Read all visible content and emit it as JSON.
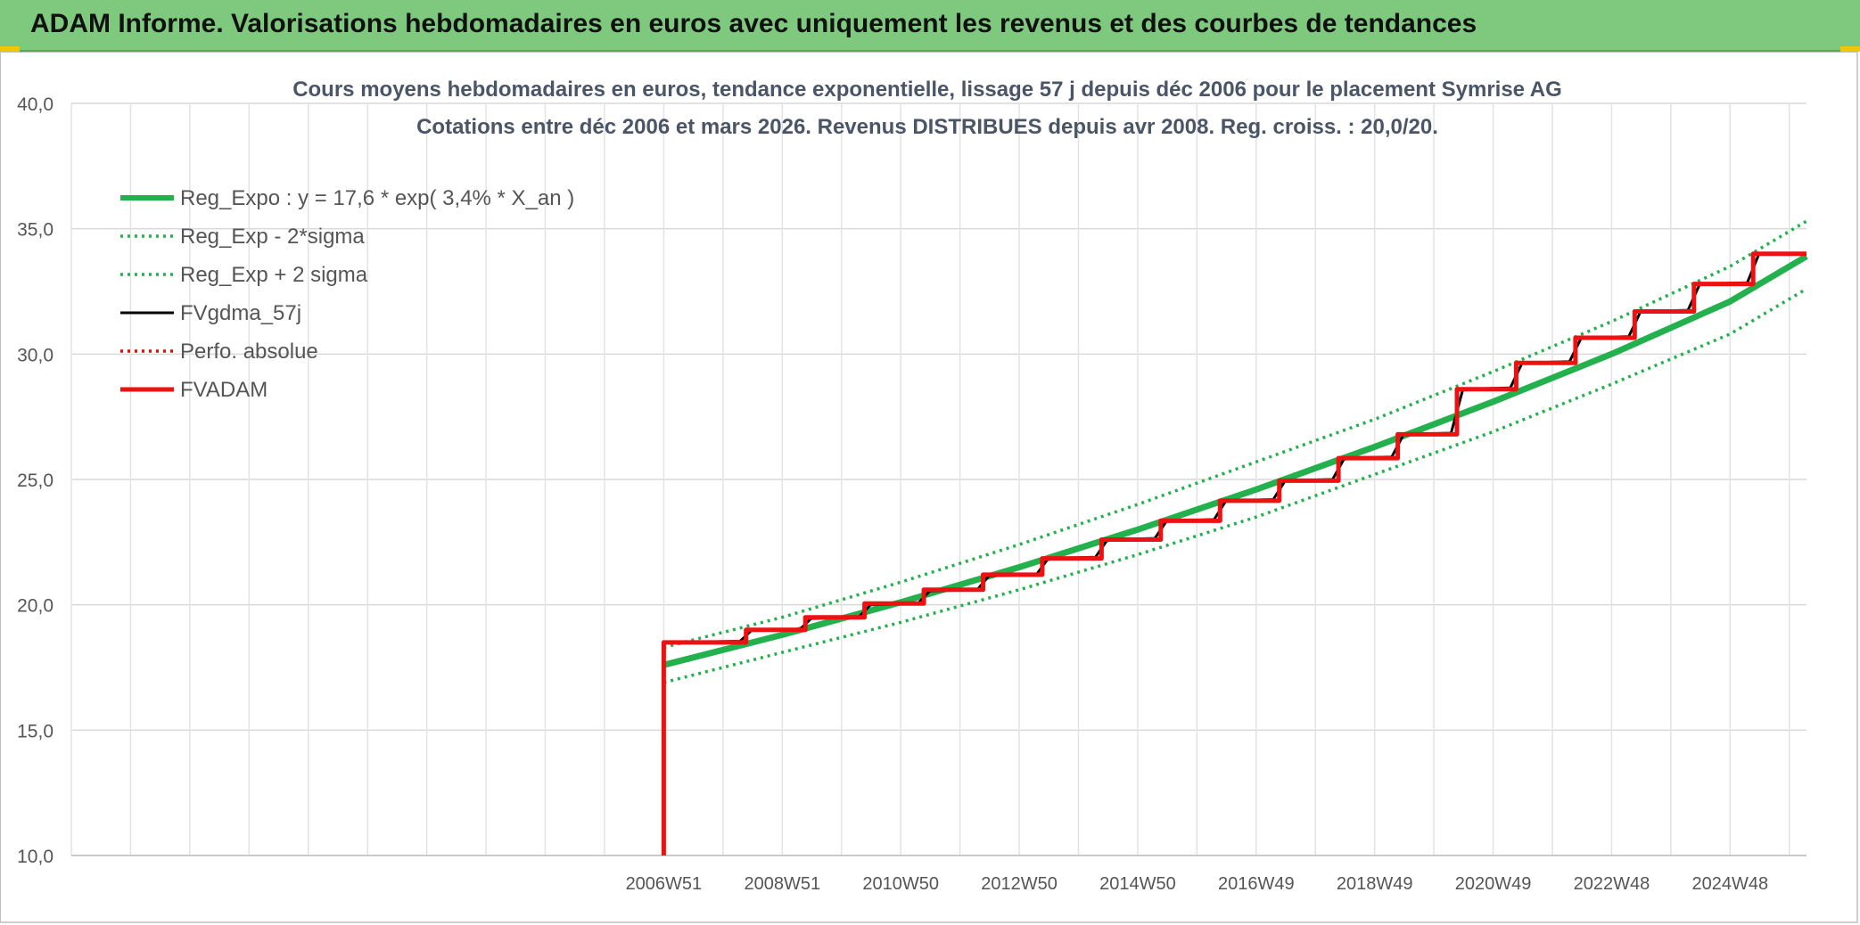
{
  "header": {
    "title": "ADAM Informe. Valorisations hebdomadaires en euros avec uniquement les revenus et des courbes de tendances"
  },
  "chart_data": {
    "type": "line",
    "title": "Cours moyens hebdomadaires en euros, tendance exponentielle, lissage 57 j depuis déc 2006 pour le placement Symrise AG",
    "subtitle": "Cotations entre déc 2006 et mars 2026. Revenus DISTRIBUES depuis avr 2008. Reg. croiss. : 20,0/20.",
    "ylim": [
      10,
      40
    ],
    "y_ticks": [
      "10,0",
      "15,0",
      "20,0",
      "25,0",
      "30,0",
      "35,0",
      "40,0"
    ],
    "x_ticks": [
      {
        "year": 2006.96,
        "label": "2006W51"
      },
      {
        "year": 2008.96,
        "label": "2008W51"
      },
      {
        "year": 2010.96,
        "label": "2010W50"
      },
      {
        "year": 2012.96,
        "label": "2012W50"
      },
      {
        "year": 2014.96,
        "label": "2014W50"
      },
      {
        "year": 2016.96,
        "label": "2016W49"
      },
      {
        "year": 2018.96,
        "label": "2018W49"
      },
      {
        "year": 2020.96,
        "label": "2020W49"
      },
      {
        "year": 2022.96,
        "label": "2022W48"
      },
      {
        "year": 2024.96,
        "label": "2024W48"
      }
    ],
    "xlim_years": [
      1996.96,
      2026.25
    ],
    "legend_position": "top-left",
    "grid": true,
    "series": [
      {
        "name": "Reg_Expo : y = 17,6 * exp( 3,4% *  X_an )",
        "color": "#22b14c",
        "style": "solid-thick",
        "points": [
          [
            2006.96,
            17.6
          ],
          [
            2008.96,
            18.8
          ],
          [
            2010.96,
            20.1
          ],
          [
            2012.96,
            21.5
          ],
          [
            2014.96,
            23.0
          ],
          [
            2016.96,
            24.6
          ],
          [
            2018.96,
            26.3
          ],
          [
            2020.96,
            28.1
          ],
          [
            2022.96,
            30.0
          ],
          [
            2024.96,
            32.1
          ],
          [
            2026.25,
            33.9
          ]
        ]
      },
      {
        "name": "Reg_Exp - 2*sigma",
        "color": "#22b14c",
        "style": "dotted",
        "points": [
          [
            2006.96,
            16.9
          ],
          [
            2008.96,
            18.1
          ],
          [
            2010.96,
            19.3
          ],
          [
            2012.96,
            20.6
          ],
          [
            2014.96,
            22.0
          ],
          [
            2016.96,
            23.5
          ],
          [
            2018.96,
            25.2
          ],
          [
            2020.96,
            26.9
          ],
          [
            2022.96,
            28.8
          ],
          [
            2024.96,
            30.8
          ],
          [
            2026.25,
            32.6
          ]
        ]
      },
      {
        "name": "Reg_Exp + 2 sigma",
        "color": "#22b14c",
        "style": "dotted",
        "points": [
          [
            2006.96,
            18.3
          ],
          [
            2008.96,
            19.5
          ],
          [
            2010.96,
            20.9
          ],
          [
            2012.96,
            22.4
          ],
          [
            2014.96,
            24.0
          ],
          [
            2016.96,
            25.7
          ],
          [
            2018.96,
            27.4
          ],
          [
            2020.96,
            29.3
          ],
          [
            2022.96,
            31.3
          ],
          [
            2024.96,
            33.5
          ],
          [
            2026.25,
            35.3
          ]
        ]
      },
      {
        "name": "FVgdma_57j",
        "color": "#000000",
        "style": "solid",
        "points": [
          [
            2006.96,
            18.5
          ],
          [
            2008.25,
            18.55
          ],
          [
            2008.45,
            19.0
          ],
          [
            2009.25,
            19.0
          ],
          [
            2009.45,
            19.45
          ],
          [
            2010.25,
            19.5
          ],
          [
            2010.45,
            20.0
          ],
          [
            2011.25,
            20.05
          ],
          [
            2011.45,
            20.55
          ],
          [
            2012.25,
            20.6
          ],
          [
            2012.45,
            21.15
          ],
          [
            2013.25,
            21.2
          ],
          [
            2013.45,
            21.85
          ],
          [
            2014.25,
            21.9
          ],
          [
            2014.45,
            22.6
          ],
          [
            2015.25,
            22.65
          ],
          [
            2015.45,
            23.35
          ],
          [
            2016.25,
            23.4
          ],
          [
            2016.45,
            24.15
          ],
          [
            2017.25,
            24.2
          ],
          [
            2017.45,
            24.95
          ],
          [
            2018.25,
            25.0
          ],
          [
            2018.45,
            25.85
          ],
          [
            2019.25,
            25.9
          ],
          [
            2019.45,
            26.8
          ],
          [
            2020.25,
            26.85
          ],
          [
            2020.45,
            28.6
          ],
          [
            2021.25,
            28.65
          ],
          [
            2021.45,
            29.65
          ],
          [
            2022.25,
            29.7
          ],
          [
            2022.45,
            30.65
          ],
          [
            2023.25,
            30.7
          ],
          [
            2023.45,
            31.7
          ],
          [
            2024.25,
            31.75
          ],
          [
            2024.45,
            32.8
          ],
          [
            2025.25,
            32.85
          ],
          [
            2025.45,
            34.0
          ],
          [
            2026.25,
            34.0
          ]
        ]
      },
      {
        "name": "Perfo. absolue",
        "color": "#ff0000",
        "style": "dotted",
        "points": []
      },
      {
        "name": "FVADAM",
        "color": "#ee1111",
        "style": "step-thick",
        "points": [
          [
            2006.96,
            10.0
          ],
          [
            2006.96,
            18.5
          ],
          [
            2008.35,
            18.5
          ],
          [
            2008.35,
            19.0
          ],
          [
            2009.35,
            19.0
          ],
          [
            2009.35,
            19.5
          ],
          [
            2010.35,
            19.5
          ],
          [
            2010.35,
            20.05
          ],
          [
            2011.35,
            20.05
          ],
          [
            2011.35,
            20.6
          ],
          [
            2012.35,
            20.6
          ],
          [
            2012.35,
            21.2
          ],
          [
            2013.35,
            21.2
          ],
          [
            2013.35,
            21.85
          ],
          [
            2014.35,
            21.85
          ],
          [
            2014.35,
            22.6
          ],
          [
            2015.35,
            22.6
          ],
          [
            2015.35,
            23.35
          ],
          [
            2016.35,
            23.35
          ],
          [
            2016.35,
            24.15
          ],
          [
            2017.35,
            24.15
          ],
          [
            2017.35,
            24.95
          ],
          [
            2018.35,
            24.95
          ],
          [
            2018.35,
            25.85
          ],
          [
            2019.35,
            25.85
          ],
          [
            2019.35,
            26.8
          ],
          [
            2020.35,
            26.8
          ],
          [
            2020.35,
            28.6
          ],
          [
            2021.35,
            28.6
          ],
          [
            2021.35,
            29.65
          ],
          [
            2022.35,
            29.65
          ],
          [
            2022.35,
            30.65
          ],
          [
            2023.35,
            30.65
          ],
          [
            2023.35,
            31.7
          ],
          [
            2024.35,
            31.7
          ],
          [
            2024.35,
            32.8
          ],
          [
            2025.35,
            32.8
          ],
          [
            2025.35,
            34.0
          ],
          [
            2026.25,
            34.0
          ]
        ]
      }
    ]
  }
}
